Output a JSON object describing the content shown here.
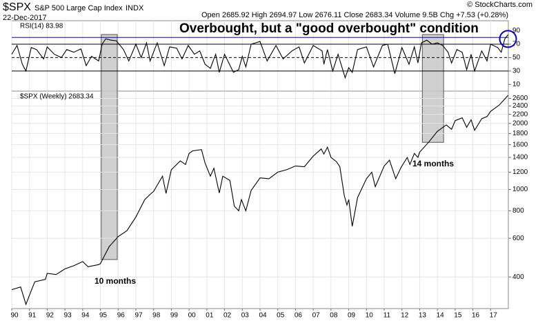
{
  "header": {
    "symbol": "$SPX",
    "name": "S&P 500 Large Cap Index",
    "exchange": "INDX",
    "date": "22-Dec-2017",
    "quote": "Open 2685.92 High 2694.97 Low 2676.11 Close 2683.34 Volume 9.5B Chg +7.53 (+0.28%)",
    "source": "© StockCharts.com"
  },
  "annotations": [
    {
      "text": "Overbought, but a \"good overbought\" condition",
      "color": "#ee1111"
    },
    {
      "text": "10 months",
      "color": "#000000"
    },
    {
      "text": "14 months",
      "color": "#000000"
    }
  ],
  "chart_data": [
    {
      "type": "line",
      "label": "RSI(14) 83.98",
      "color": "#000000",
      "xlim": [
        1990,
        2018
      ],
      "ylim": [
        0,
        105
      ],
      "yticks": [
        10,
        30,
        50,
        70,
        90
      ],
      "reference_lines": [
        {
          "value": 80,
          "color": "#0000cc"
        },
        {
          "value": 70,
          "color": "#000000"
        },
        {
          "value": 50,
          "color": "#000000",
          "dashed": true
        },
        {
          "value": 30,
          "color": "#000000"
        }
      ],
      "x": [
        1990.0,
        1990.3,
        1990.6,
        1990.8,
        1991.1,
        1991.4,
        1991.8,
        1992.0,
        1992.4,
        1992.8,
        1993.1,
        1993.5,
        1993.9,
        1994.2,
        1994.5,
        1994.9,
        1995.1,
        1995.3,
        1995.6,
        1995.9,
        1996.3,
        1996.6,
        1997.0,
        1997.3,
        1997.6,
        1997.8,
        1998.2,
        1998.6,
        1998.9,
        1999.3,
        1999.6,
        1999.95,
        2000.3,
        2000.6,
        2000.9,
        2001.2,
        2001.5,
        2001.7,
        2002.0,
        2002.5,
        2002.8,
        2003.0,
        2003.2,
        2003.5,
        2004.0,
        2004.4,
        2004.9,
        2005.3,
        2005.8,
        2006.2,
        2006.5,
        2007.0,
        2007.5,
        2007.6,
        2007.8,
        2008.1,
        2008.4,
        2008.8,
        2009.0,
        2009.2,
        2009.5,
        2010.0,
        2010.4,
        2010.9,
        2011.2,
        2011.6,
        2012.0,
        2012.4,
        2012.7,
        2012.9,
        2013.1,
        2013.4,
        2013.7,
        2014.0,
        2014.3,
        2014.6,
        2014.8,
        2015.1,
        2015.4,
        2015.65,
        2015.9,
        2016.1,
        2016.5,
        2016.8,
        2017.0,
        2017.4,
        2017.6,
        2017.8,
        2017.98
      ],
      "values": [
        55,
        68,
        40,
        30,
        65,
        62,
        48,
        66,
        55,
        50,
        62,
        58,
        63,
        38,
        52,
        45,
        70,
        78,
        76,
        75,
        62,
        45,
        70,
        50,
        72,
        45,
        72,
        38,
        66,
        64,
        48,
        68,
        55,
        60,
        40,
        34,
        55,
        28,
        55,
        28,
        32,
        52,
        36,
        70,
        74,
        45,
        68,
        48,
        60,
        66,
        42,
        68,
        60,
        40,
        62,
        30,
        55,
        20,
        35,
        28,
        62,
        66,
        36,
        68,
        70,
        26,
        65,
        40,
        66,
        42,
        72,
        76,
        70,
        72,
        68,
        58,
        42,
        62,
        58,
        32,
        55,
        30,
        60,
        45,
        70,
        65,
        58,
        78,
        83.98
      ]
    },
    {
      "type": "line",
      "label": "$SPX (Weekly) 2683.34",
      "color": "#000000",
      "log_scale": true,
      "grid": true,
      "xlim": [
        1990,
        2018
      ],
      "ylim": [
        287,
        2806
      ],
      "yticks": [
        400,
        600,
        800,
        1000,
        1200,
        1400,
        1600,
        1800,
        2000,
        2200,
        2400,
        2600
      ],
      "xticks": [
        {
          "value": 1990,
          "label": "90"
        },
        {
          "value": 1991,
          "label": "91"
        },
        {
          "value": 1992,
          "label": "92"
        },
        {
          "value": 1993,
          "label": "93"
        },
        {
          "value": 1994,
          "label": "94"
        },
        {
          "value": 1995,
          "label": "95"
        },
        {
          "value": 1996,
          "label": "96"
        },
        {
          "value": 1997,
          "label": "97"
        },
        {
          "value": 1998,
          "label": "98"
        },
        {
          "value": 1999,
          "label": "99"
        },
        {
          "value": 2000,
          "label": "00"
        },
        {
          "value": 2001,
          "label": "01"
        },
        {
          "value": 2002,
          "label": "02"
        },
        {
          "value": 2003,
          "label": "03"
        },
        {
          "value": 2004,
          "label": "04"
        },
        {
          "value": 2005,
          "label": "05"
        },
        {
          "value": 2006,
          "label": "06"
        },
        {
          "value": 2007,
          "label": "07"
        },
        {
          "value": 2008,
          "label": "08"
        },
        {
          "value": 2009,
          "label": "09"
        },
        {
          "value": 2010,
          "label": "10"
        },
        {
          "value": 2011,
          "label": "11"
        },
        {
          "value": 2012,
          "label": "12"
        },
        {
          "value": 2013,
          "label": "13"
        },
        {
          "value": 2014,
          "label": "14"
        },
        {
          "value": 2015,
          "label": "15"
        },
        {
          "value": 2016,
          "label": "16"
        },
        {
          "value": 2017,
          "label": "17"
        }
      ],
      "shaded_regions": [
        {
          "x": [
            1995.05,
            1995.95
          ],
          "ymin": 480
        },
        {
          "x": [
            2013.15,
            2014.35
          ],
          "ymin": 1640
        }
      ],
      "x": [
        1990.0,
        1990.5,
        1990.8,
        1991.0,
        1991.3,
        1991.9,
        1992.0,
        1992.5,
        1993.0,
        1993.5,
        1994.0,
        1994.3,
        1994.9,
        1995.0,
        1995.5,
        1996.0,
        1996.5,
        1997.0,
        1997.5,
        1997.8,
        1998.0,
        1998.5,
        1998.7,
        1999.0,
        1999.5,
        1999.8,
        2000.0,
        2000.2,
        2000.7,
        2000.9,
        2001.2,
        2001.4,
        2001.7,
        2001.9,
        2002.3,
        2002.55,
        2002.8,
        2002.95,
        2003.2,
        2003.5,
        2004.0,
        2004.5,
        2005.0,
        2005.5,
        2006.0,
        2006.5,
        2007.0,
        2007.45,
        2007.6,
        2007.8,
        2008.0,
        2008.3,
        2008.5,
        2008.75,
        2008.9,
        2009.0,
        2009.2,
        2009.5,
        2010.0,
        2010.3,
        2010.5,
        2011.0,
        2011.3,
        2011.65,
        2011.95,
        2012.3,
        2012.45,
        2012.7,
        2012.9,
        2013.0,
        2013.5,
        2014.0,
        2014.5,
        2014.8,
        2015.0,
        2015.4,
        2015.65,
        2015.9,
        2016.1,
        2016.5,
        2016.8,
        2017.0,
        2017.5,
        2017.98
      ],
      "values": [
        350,
        360,
        300,
        330,
        380,
        390,
        415,
        410,
        435,
        450,
        470,
        445,
        455,
        460,
        550,
        610,
        650,
        750,
        900,
        950,
        980,
        1150,
        960,
        1230,
        1350,
        1300,
        1460,
        1500,
        1520,
        1320,
        1150,
        1250,
        965,
        1150,
        1100,
        840,
        800,
        900,
        800,
        990,
        1130,
        1120,
        1200,
        1230,
        1280,
        1270,
        1420,
        1530,
        1450,
        1560,
        1400,
        1340,
        1270,
        940,
        850,
        900,
        680,
        920,
        1120,
        1200,
        1030,
        1280,
        1360,
        1120,
        1260,
        1400,
        1300,
        1460,
        1400,
        1480,
        1640,
        1840,
        1970,
        1880,
        2060,
        2120,
        1920,
        2080,
        1860,
        2100,
        2150,
        2270,
        2430,
        2683.34
      ]
    }
  ]
}
